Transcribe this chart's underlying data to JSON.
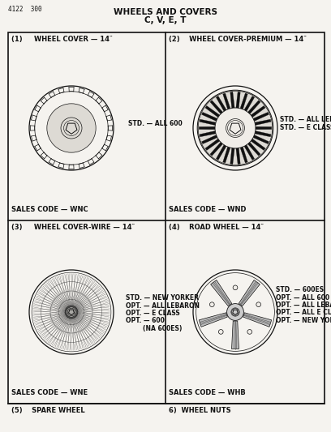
{
  "title_line1": "WHEELS AND COVERS",
  "title_line2": "C, V, E, T",
  "part_number": "4122  300",
  "background_color": "#f5f3ef",
  "text_color": "#111111",
  "panels": [
    {
      "id": 1,
      "label": "(1)     WHEEL COVER — 14″",
      "type": "wheel_cover",
      "desc": [
        "STD. — ALL 600"
      ],
      "sales_code": "SALES CODE — WNC",
      "col": 0,
      "row": 0
    },
    {
      "id": 2,
      "label": "(2)    WHEEL COVER-PREMIUM — 14″",
      "type": "wheel_cover_premium",
      "desc": [
        "STD. — ALL LEBARON",
        "STD. — E CLASS"
      ],
      "sales_code": "SALES CODE — WND",
      "col": 1,
      "row": 0
    },
    {
      "id": 3,
      "label": "(3)     WHEEL COVER-WIRE — 14″",
      "type": "wheel_cover_wire",
      "desc": [
        "STD. — NEW YORKER",
        "OPT. — ALL LEBARON",
        "OPT. — E CLASS",
        "OPT. — 600",
        "        (NA 600ES)"
      ],
      "sales_code": "SALES CODE — WNE",
      "col": 0,
      "row": 1
    },
    {
      "id": 4,
      "label": "(4)    ROAD WHEEL — 14″",
      "type": "road_wheel",
      "desc": [
        "STD. — 600ES",
        "OPT. — ALL 600",
        "OPT. — ALL LEBARON",
        "OPT. — ALL E CLASS",
        "OPT. — NEW YORKER"
      ],
      "sales_code": "SALES CODE — WHB",
      "col": 1,
      "row": 1
    }
  ],
  "bottom_left": "(5)    SPARE WHEEL",
  "bottom_right": "6)  WHEEL NUTS",
  "grid_color": "#111111",
  "line_width": 1.2
}
